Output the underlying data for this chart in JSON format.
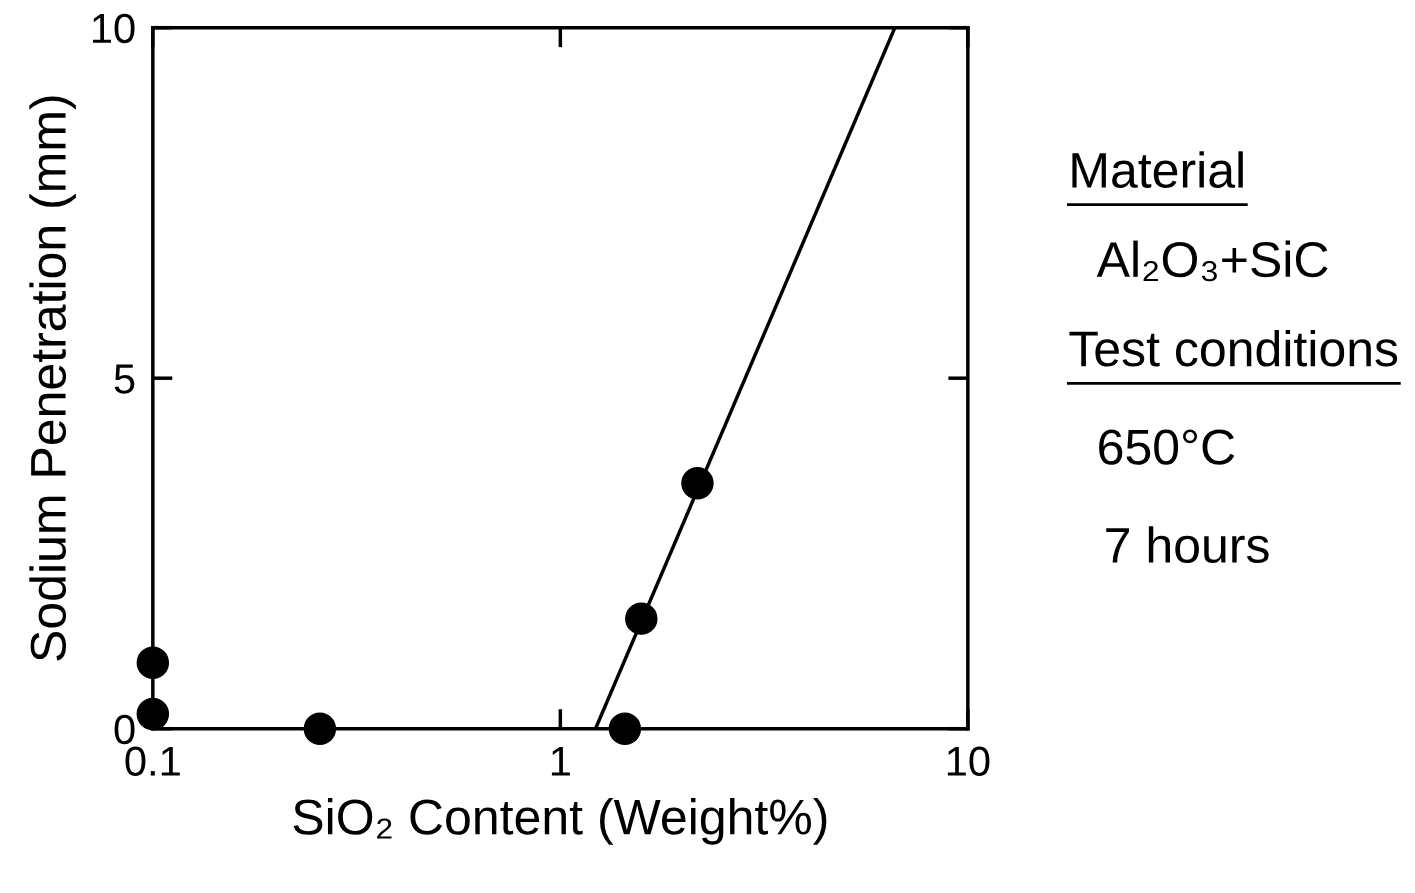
{
  "chart_data": {
    "type": "scatter",
    "xlabel": "SiO₂ Content (Weight%)",
    "ylabel": "Sodium Penetration (mm)",
    "log": "x",
    "xlim": [
      0.1,
      10
    ],
    "xticks": [
      {
        "value": 0.1,
        "label": "0.1"
      },
      1,
      10
    ],
    "ylim": [
      0,
      10
    ],
    "yticks": [
      0,
      5,
      10
    ],
    "marker": "circle",
    "grid": false,
    "series": [
      {
        "color": "#000000",
        "x": [
          0.1,
          0.1,
          0.257,
          1.44,
          1.58,
          2.17
        ],
        "values": [
          0.94,
          0.21,
          0,
          0,
          1.57,
          3.5
        ]
      },
      {
        "type": "line",
        "color": "#000000",
        "marker": "none",
        "line_style": "solid",
        "x": [
          1.22,
          6.62
        ],
        "values": [
          0,
          10
        ]
      }
    ],
    "annotations": [
      "Material",
      "Al₂O₃+SiC",
      "Test conditions",
      "650°C",
      "7 hours"
    ]
  }
}
